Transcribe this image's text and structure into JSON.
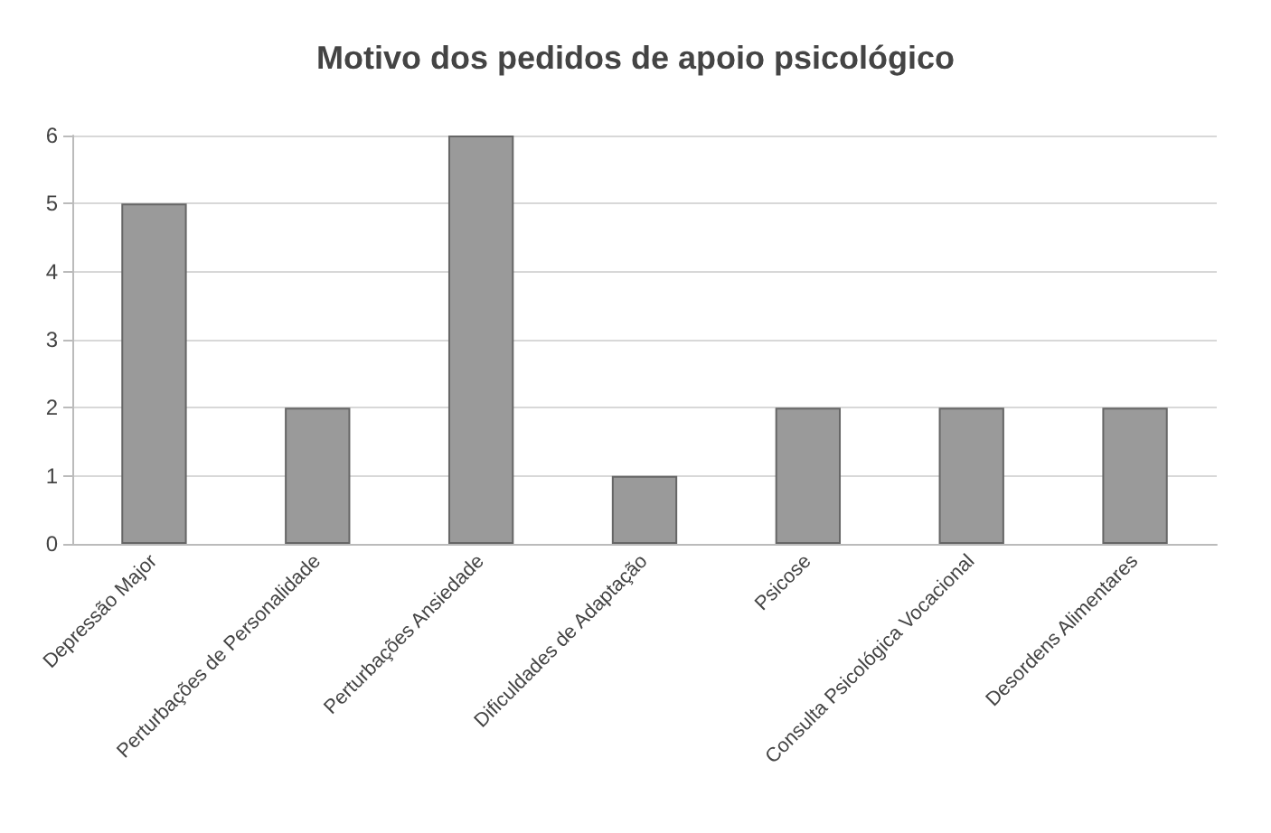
{
  "chart_data": {
    "type": "bar",
    "title": "Motivo dos pedidos de apoio psicológico",
    "categories": [
      "Depressão Major",
      "Perturbações de Personalidade",
      "Perturbações Ansiedade",
      "Dificuldades de Adaptação",
      "Psicose",
      "Consulta Psicológica Vocacional",
      "Desordens Alimentares"
    ],
    "values": [
      5,
      2,
      6,
      1,
      2,
      2,
      2
    ],
    "color": "#9a9a9a",
    "ylim": [
      0,
      6
    ],
    "yticks": [
      0,
      1,
      2,
      3,
      4,
      5,
      6
    ],
    "grid": true
  }
}
